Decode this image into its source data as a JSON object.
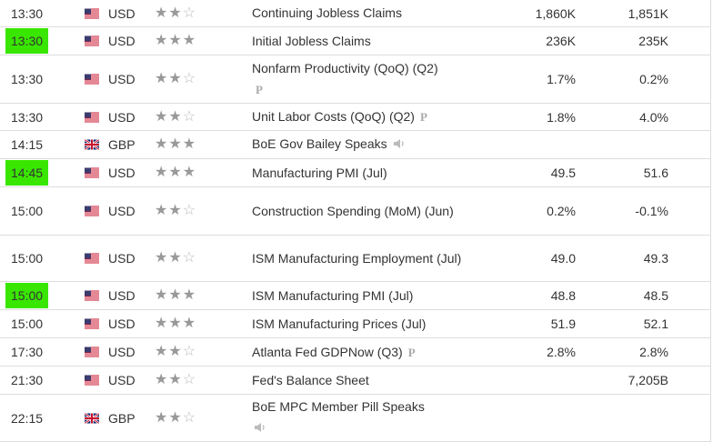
{
  "rows": [
    {
      "time": "13:30",
      "highlight": false,
      "country": "US",
      "currency": "USD",
      "stars": 2,
      "event": "Continuing Jobless Claims",
      "actual": "1,860K",
      "forecast": "1,851K",
      "h": 30
    },
    {
      "time": "13:30",
      "highlight": true,
      "country": "US",
      "currency": "USD",
      "stars": 3,
      "event": "Initial Jobless Claims",
      "actual": "236K",
      "forecast": "235K",
      "h": 31
    },
    {
      "time": "13:30",
      "highlight": false,
      "country": "US",
      "currency": "USD",
      "stars": 2,
      "event": "Nonfarm Productivity (QoQ) (Q2)",
      "actual": "1.7%",
      "forecast": "0.2%",
      "h": 53,
      "prelim_below": true
    },
    {
      "time": "13:30",
      "highlight": false,
      "country": "US",
      "currency": "USD",
      "stars": 2,
      "event": "Unit Labor Costs (QoQ) (Q2)",
      "actual": "1.8%",
      "forecast": "4.0%",
      "h": 30,
      "prelim": true
    },
    {
      "time": "14:15",
      "highlight": false,
      "country": "GB",
      "currency": "GBP",
      "stars": 3,
      "event": "BoE Gov Bailey Speaks",
      "actual": "",
      "forecast": "",
      "h": 31,
      "speaker": true
    },
    {
      "time": "14:45",
      "highlight": true,
      "country": "US",
      "currency": "USD",
      "stars": 3,
      "event": "Manufacturing PMI (Jul)",
      "actual": "49.5",
      "forecast": "51.6",
      "h": 31
    },
    {
      "time": "15:00",
      "highlight": false,
      "country": "US",
      "currency": "USD",
      "stars": 2,
      "event": "Construction Spending (MoM) (Jun)",
      "actual": "0.2%",
      "forecast": "-0.1%",
      "h": 53
    },
    {
      "time": "15:00",
      "highlight": false,
      "country": "US",
      "currency": "USD",
      "stars": 2,
      "event": "ISM Manufacturing Employment (Jul)",
      "actual": "49.0",
      "forecast": "49.3",
      "h": 51
    },
    {
      "time": "15:00",
      "highlight": true,
      "country": "US",
      "currency": "USD",
      "stars": 3,
      "event": "ISM Manufacturing PMI (Jul)",
      "actual": "48.8",
      "forecast": "48.5",
      "h": 31
    },
    {
      "time": "15:00",
      "highlight": false,
      "country": "US",
      "currency": "USD",
      "stars": 3,
      "event": "ISM Manufacturing Prices (Jul)",
      "actual": "51.9",
      "forecast": "52.1",
      "h": 31
    },
    {
      "time": "17:30",
      "highlight": false,
      "country": "US",
      "currency": "USD",
      "stars": 2,
      "event": "Atlanta Fed GDPNow (Q3)",
      "actual": "2.8%",
      "forecast": "2.8%",
      "h": 31,
      "prelim": true
    },
    {
      "time": "21:30",
      "highlight": false,
      "country": "US",
      "currency": "USD",
      "stars": 2,
      "event": "Fed's Balance Sheet",
      "actual": "",
      "forecast": "7,205B",
      "h": 31
    },
    {
      "time": "22:15",
      "highlight": false,
      "country": "GB",
      "currency": "GBP",
      "stars": 2,
      "event": "BoE MPC Member Pill Speaks",
      "actual": "",
      "forecast": "",
      "h": 52,
      "speaker_below": true
    }
  ],
  "prelim_mark": "P",
  "colors": {
    "highlight": "#39e600",
    "star": "#999999"
  }
}
